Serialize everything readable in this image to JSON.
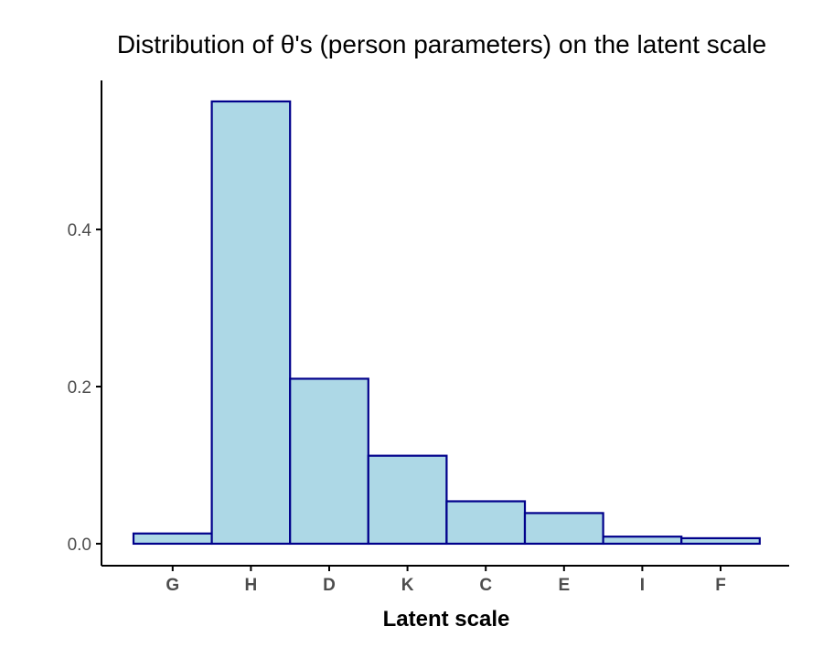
{
  "chart_data": {
    "type": "bar",
    "title": "Distribution of θ's (person parameters) on the latent scale",
    "xlabel": "Latent scale",
    "ylabel": "",
    "categories": [
      "G",
      "H",
      "D",
      "K",
      "C",
      "E",
      "I",
      "F"
    ],
    "values": [
      0.013,
      0.563,
      0.21,
      0.112,
      0.054,
      0.039,
      0.009,
      0.007
    ],
    "ylim": [
      -0.028,
      0.563
    ],
    "yticks": [
      0.0,
      0.2,
      0.4
    ],
    "ytick_labels": [
      "0.0",
      "0.2",
      "0.4"
    ],
    "grid": false,
    "legend": "none",
    "colors": {
      "bar_fill": "#add8e6",
      "bar_stroke": "#00008b",
      "axis": "#000000"
    }
  }
}
